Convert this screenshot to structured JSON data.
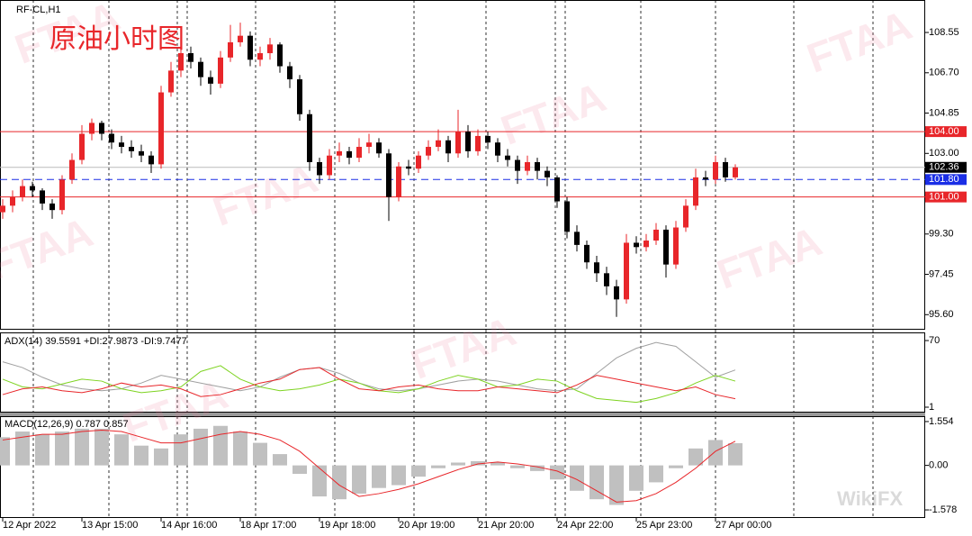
{
  "header": {
    "symbol": "RF-CL,H1",
    "overlay_title": "原油小时图",
    "watermark": "FTAA",
    "watermark2": "WikiFX"
  },
  "chart_data": [
    {
      "type": "candlestick",
      "up_color": "#e8262a",
      "down_color": "#000000",
      "ylim": [
        94.95,
        110.04
      ],
      "yticks": [
        108.55,
        106.7,
        104.85,
        103,
        99.3,
        97.45,
        95.6
      ],
      "ytick_labels": [
        "108.55",
        "106.70",
        "104.85",
        "103.00",
        "99.30",
        "97.45",
        "95.60"
      ],
      "xticks": [
        {
          "value": 0,
          "label": "12 Apr 2022"
        },
        {
          "value": 8,
          "label": "13 Apr 15:00"
        },
        {
          "value": 16,
          "label": "14 Apr 16:00"
        },
        {
          "value": 24,
          "label": "18 Apr 17:00"
        },
        {
          "value": 32,
          "label": "19 Apr 18:00"
        },
        {
          "value": 40,
          "label": "20 Apr 19:00"
        },
        {
          "value": 48,
          "label": "21 Apr 20:00"
        },
        {
          "value": 56,
          "label": "24 Apr 22:00"
        },
        {
          "value": 64,
          "label": "25 Apr 23:00"
        },
        {
          "value": 72,
          "label": "27 Apr 00:00"
        }
      ],
      "levels": [
        {
          "value": 104,
          "label": "104.00",
          "color": "#e8262a",
          "dashed": false
        },
        {
          "value": 102.36,
          "label": "102.36",
          "color": "#000000",
          "dashed": false
        },
        {
          "value": 101.8,
          "label": "101.80",
          "color": "#1a2ee6",
          "dashed": true
        },
        {
          "value": 101,
          "label": "101.00",
          "color": "#e8262a",
          "dashed": false
        }
      ],
      "ohlc": [
        [
          100.3,
          100.9,
          100.0,
          100.6
        ],
        [
          100.6,
          101.3,
          100.3,
          101.0
        ],
        [
          101.0,
          101.8,
          100.8,
          101.5
        ],
        [
          101.5,
          101.7,
          101.0,
          101.3
        ],
        [
          101.3,
          101.4,
          100.4,
          100.7
        ],
        [
          100.7,
          100.9,
          100.0,
          100.4
        ],
        [
          100.4,
          102.0,
          100.2,
          101.8
        ],
        [
          101.8,
          103.0,
          101.6,
          102.7
        ],
        [
          102.7,
          104.3,
          102.5,
          103.9
        ],
        [
          103.9,
          104.6,
          103.6,
          104.4
        ],
        [
          104.4,
          104.5,
          103.6,
          103.9
        ],
        [
          103.9,
          104.1,
          103.2,
          103.5
        ],
        [
          103.5,
          103.8,
          103.0,
          103.3
        ],
        [
          103.3,
          103.6,
          102.8,
          103.1
        ],
        [
          103.1,
          103.4,
          102.6,
          102.9
        ],
        [
          102.9,
          103.1,
          102.1,
          102.5
        ],
        [
          102.5,
          106.1,
          102.3,
          105.8
        ],
        [
          105.8,
          107.2,
          105.6,
          106.8
        ],
        [
          106.8,
          108.0,
          106.5,
          107.6
        ],
        [
          107.6,
          107.9,
          106.9,
          107.2
        ],
        [
          107.2,
          107.4,
          106.1,
          106.5
        ],
        [
          106.5,
          106.8,
          105.7,
          106.2
        ],
        [
          106.2,
          107.7,
          106.0,
          107.4
        ],
        [
          107.4,
          108.9,
          107.2,
          108.1
        ],
        [
          108.1,
          109.0,
          107.9,
          108.4
        ],
        [
          108.4,
          108.6,
          107.0,
          107.3
        ],
        [
          107.3,
          107.9,
          107.0,
          107.6
        ],
        [
          107.6,
          108.3,
          107.3,
          108.0
        ],
        [
          108.0,
          108.1,
          106.7,
          107.0
        ],
        [
          107.0,
          107.2,
          106.0,
          106.4
        ],
        [
          106.4,
          106.6,
          104.5,
          104.8
        ],
        [
          104.8,
          105.0,
          102.2,
          102.6
        ],
        [
          102.6,
          102.8,
          101.6,
          102.0
        ],
        [
          102.0,
          103.2,
          101.8,
          102.9
        ],
        [
          102.9,
          103.5,
          102.6,
          103.1
        ],
        [
          103.1,
          103.3,
          102.5,
          102.8
        ],
        [
          102.8,
          103.7,
          102.6,
          103.3
        ],
        [
          103.3,
          103.9,
          103.0,
          103.5
        ],
        [
          103.5,
          103.7,
          102.8,
          103.0
        ],
        [
          103.0,
          103.2,
          99.9,
          101.0
        ],
        [
          101.0,
          102.6,
          100.8,
          102.4
        ],
        [
          102.4,
          102.7,
          102.0,
          102.3
        ],
        [
          102.3,
          103.1,
          102.1,
          102.9
        ],
        [
          102.9,
          103.6,
          102.7,
          103.3
        ],
        [
          103.3,
          104.1,
          103.1,
          103.6
        ],
        [
          103.6,
          103.8,
          102.6,
          103.0
        ],
        [
          103.0,
          105.0,
          102.8,
          104.0
        ],
        [
          104.0,
          104.3,
          102.8,
          103.1
        ],
        [
          103.1,
          104.1,
          102.9,
          103.8
        ],
        [
          103.8,
          104.0,
          103.2,
          103.5
        ],
        [
          103.5,
          103.7,
          102.6,
          102.9
        ],
        [
          102.9,
          103.2,
          102.4,
          102.7
        ],
        [
          102.7,
          102.9,
          101.6,
          102.2
        ],
        [
          102.2,
          102.9,
          102.0,
          102.6
        ],
        [
          102.6,
          102.8,
          101.8,
          102.2
        ],
        [
          102.2,
          102.4,
          101.5,
          101.9
        ],
        [
          101.9,
          102.0,
          100.5,
          100.8
        ],
        [
          100.8,
          101.0,
          99.1,
          99.4
        ],
        [
          99.4,
          99.7,
          98.5,
          98.8
        ],
        [
          98.8,
          99.0,
          97.7,
          98.0
        ],
        [
          98.0,
          98.3,
          97.1,
          97.5
        ],
        [
          97.5,
          97.8,
          96.5,
          96.9
        ],
        [
          96.9,
          97.2,
          95.5,
          96.3
        ],
        [
          96.3,
          99.3,
          96.1,
          98.9
        ],
        [
          98.9,
          99.2,
          98.4,
          98.7
        ],
        [
          98.7,
          99.3,
          98.5,
          99.0
        ],
        [
          99.0,
          99.8,
          98.8,
          99.5
        ],
        [
          99.5,
          99.7,
          97.3,
          97.9
        ],
        [
          97.9,
          99.9,
          97.7,
          99.6
        ],
        [
          99.6,
          100.9,
          99.4,
          100.6
        ],
        [
          100.6,
          102.3,
          100.4,
          101.9
        ],
        [
          101.9,
          102.2,
          101.5,
          101.8
        ],
        [
          101.8,
          102.9,
          101.6,
          102.6
        ],
        [
          102.6,
          102.8,
          101.7,
          101.9
        ],
        [
          101.9,
          102.5,
          101.8,
          102.36
        ]
      ]
    },
    {
      "type": "line",
      "title": "ADX(14) 39.5591 +DI:27.9873 -DI:9.7477",
      "ylim": [
        -4.6,
        77.5
      ],
      "yticks": [
        70,
        1
      ],
      "x": [
        0,
        2,
        4,
        6,
        8,
        10,
        12,
        14,
        16,
        18,
        20,
        22,
        24,
        26,
        28,
        30,
        32,
        34,
        36,
        38,
        40,
        42,
        44,
        46,
        48,
        50,
        52,
        54,
        56,
        58,
        60,
        62,
        64,
        66,
        68,
        70,
        72,
        74
      ],
      "series": [
        {
          "color": "#a0a0a0",
          "values": [
            48,
            42,
            32,
            24,
            20,
            18,
            20,
            26,
            34,
            30,
            26,
            22,
            18,
            22,
            32,
            40,
            42,
            36,
            26,
            20,
            18,
            20,
            24,
            28,
            30,
            28,
            24,
            20,
            18,
            20,
            36,
            52,
            62,
            68,
            64,
            48,
            32,
            39.56
          ]
        },
        {
          "color": "#7ed321",
          "values": [
            30,
            22,
            20,
            25,
            30,
            28,
            20,
            16,
            18,
            22,
            38,
            44,
            30,
            22,
            18,
            20,
            24,
            30,
            26,
            18,
            16,
            20,
            28,
            34,
            30,
            22,
            24,
            30,
            28,
            18,
            10,
            8,
            6,
            10,
            16,
            26,
            34,
            27.99
          ]
        },
        {
          "color": "#e8262a",
          "values": [
            14,
            20,
            22,
            18,
            16,
            20,
            26,
            22,
            24,
            20,
            12,
            14,
            20,
            26,
            30,
            40,
            42,
            30,
            20,
            18,
            22,
            24,
            20,
            18,
            18,
            22,
            20,
            18,
            16,
            24,
            34,
            30,
            26,
            22,
            18,
            22,
            14,
            9.75
          ]
        }
      ]
    },
    {
      "type": "macd",
      "title": "MACD(12,26,9) 0.787 0.857",
      "ylim": [
        -1.864,
        1.744
      ],
      "yticks": [
        1.554,
        {
          "value": 0,
          "label": "0.00"
        },
        -1.578
      ],
      "x": [
        0,
        2,
        4,
        6,
        8,
        10,
        12,
        14,
        16,
        18,
        20,
        22,
        24,
        26,
        28,
        30,
        32,
        34,
        36,
        38,
        40,
        42,
        44,
        46,
        48,
        50,
        52,
        54,
        56,
        58,
        60,
        62,
        64,
        66,
        68,
        70,
        72,
        74
      ],
      "histogram": {
        "color": "#c0c0c0",
        "values": [
          1.0,
          1.2,
          1.1,
          1.2,
          1.3,
          1.3,
          1.1,
          0.7,
          0.6,
          1.1,
          1.3,
          1.4,
          1.2,
          0.8,
          0.4,
          -0.3,
          -1.1,
          -1.2,
          -1.0,
          -0.8,
          -0.7,
          -0.4,
          -0.1,
          0.1,
          0.15,
          0.1,
          -0.1,
          -0.2,
          -0.5,
          -0.9,
          -1.2,
          -1.4,
          -0.9,
          -0.6,
          -0.1,
          0.6,
          0.9,
          0.787
        ]
      },
      "signal": {
        "color": "#e8262a",
        "values": [
          0.9,
          1.0,
          1.1,
          1.1,
          1.2,
          1.25,
          1.2,
          1.0,
          0.8,
          0.8,
          0.95,
          1.1,
          1.2,
          1.1,
          0.9,
          0.5,
          -0.1,
          -0.7,
          -1.1,
          -1.0,
          -0.85,
          -0.65,
          -0.4,
          -0.15,
          0.05,
          0.12,
          0.05,
          -0.05,
          -0.2,
          -0.5,
          -0.9,
          -1.3,
          -1.25,
          -1.0,
          -0.6,
          -0.1,
          0.5,
          0.857
        ]
      }
    }
  ]
}
